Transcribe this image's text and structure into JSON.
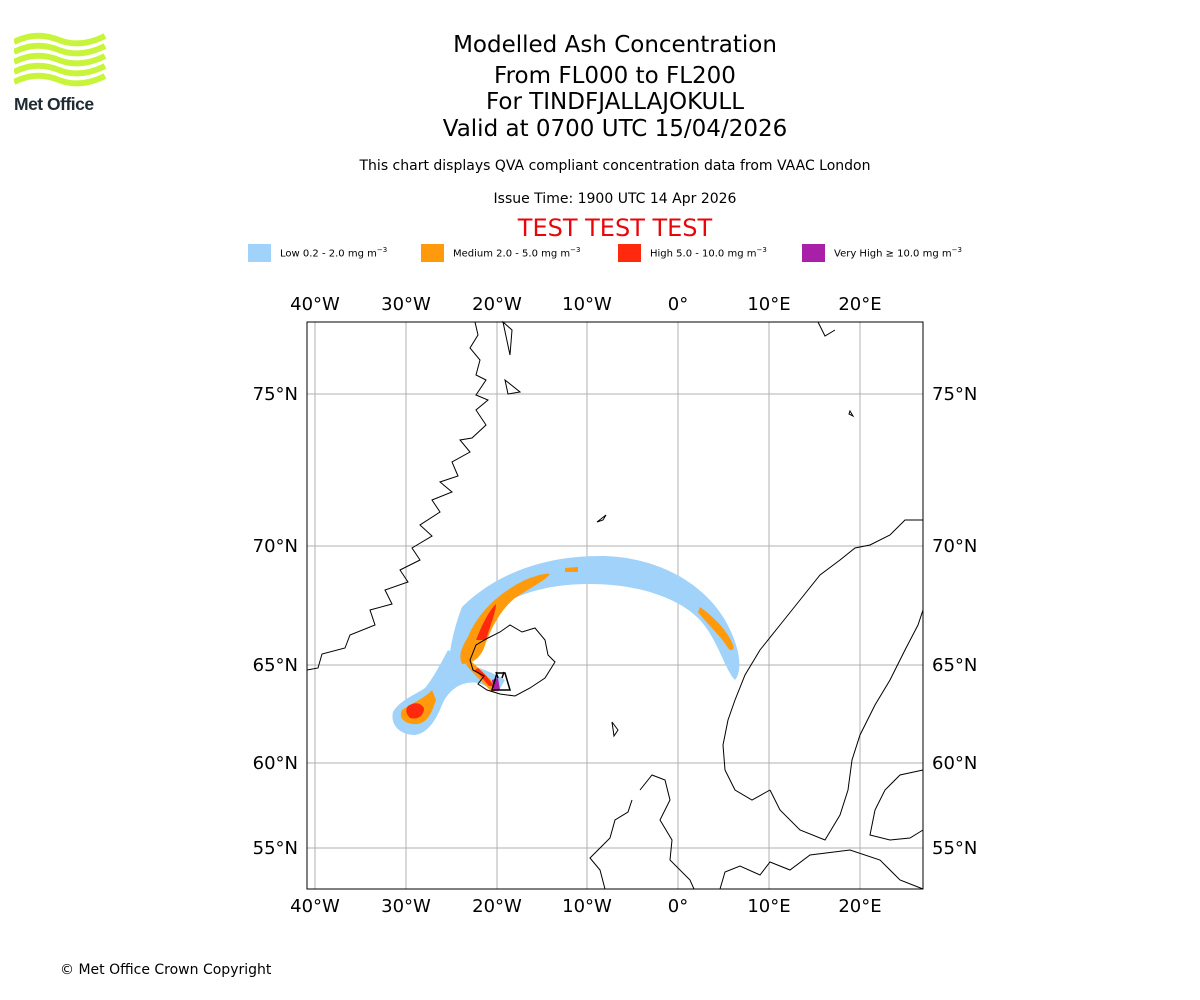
{
  "logo": {
    "text": "Met Office",
    "colors": {
      "waves": "#c8f53c",
      "text": "#1f2a33"
    }
  },
  "header": {
    "title": "Modelled Ash Concentration",
    "levels": "From FL000 to FL200",
    "volcano": "For TINDFJALLAJOKULL",
    "valid": "Valid at 0700 UTC 15/04/2026",
    "description": "This chart displays QVA compliant concentration data from VAAC London",
    "issue_time": "Issue Time: 1900 UTC 14 Apr 2026",
    "test_banner": "TEST TEST TEST"
  },
  "legend": [
    {
      "label": "Low 0.2 - 2.0 mg m",
      "unit_exp": "−3",
      "color": "#a0d2fa"
    },
    {
      "label": "Medium 2.0 - 5.0 mg m",
      "unit_exp": "−3",
      "color": "#ff9a0d"
    },
    {
      "label": "High 5.0 - 10.0 mg m",
      "unit_exp": "−3",
      "color": "#ff2a0d"
    },
    {
      "label": "Very High  ≥  10.0 mg m",
      "unit_exp": "−3",
      "color": "#a81fa8"
    }
  ],
  "map": {
    "lon_labels": [
      "40°W",
      "30°W",
      "20°W",
      "10°W",
      "0°",
      "10°E",
      "20°E"
    ],
    "lat_labels": [
      "75°N",
      "70°N",
      "65°N",
      "60°N",
      "55°N"
    ],
    "colors": {
      "grid": "#b0b0b0",
      "coast": "#000000",
      "frame": "#000000"
    },
    "volcano_marker": "volcano-icon"
  },
  "footer": {
    "copyright": "© Met Office Crown Copyright"
  }
}
